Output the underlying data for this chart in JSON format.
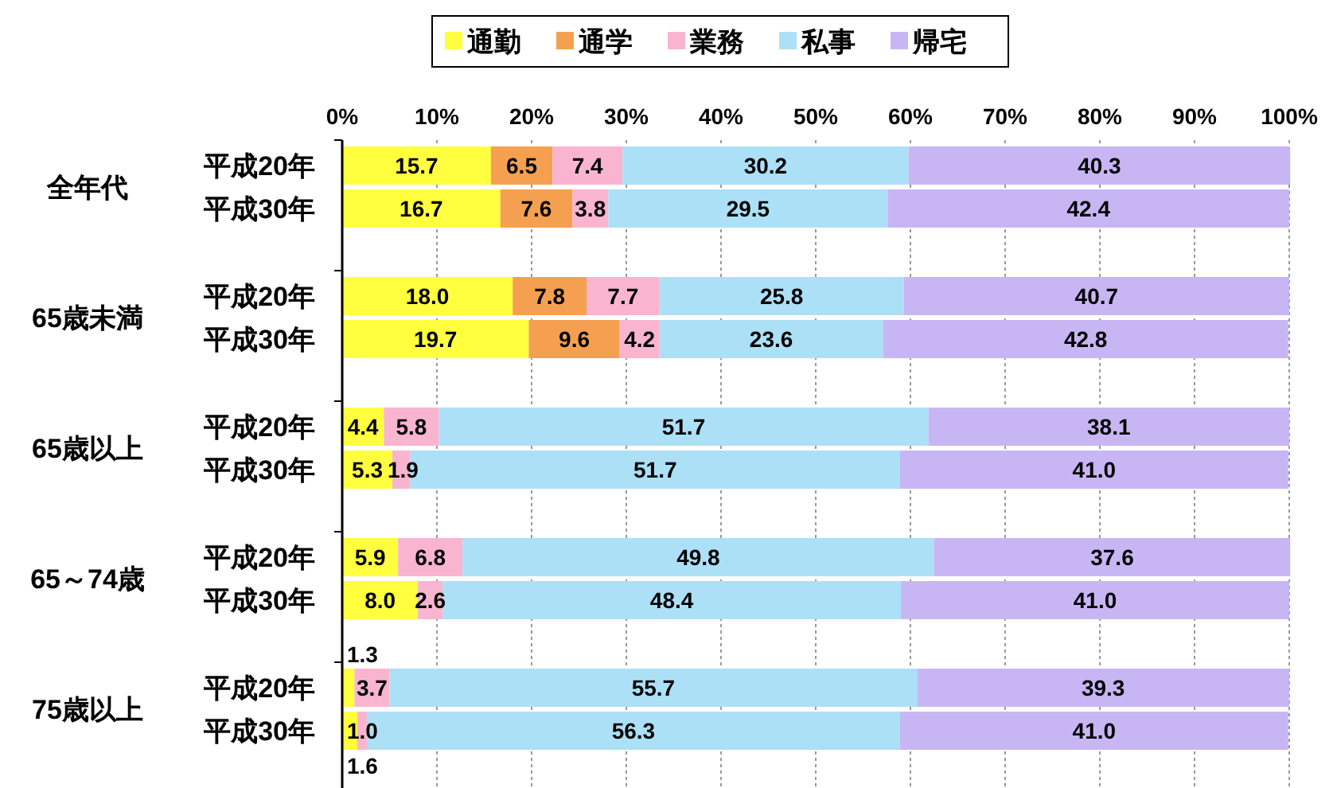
{
  "chart_data": {
    "type": "bar",
    "orientation": "horizontal",
    "stacked": true,
    "grid": "x",
    "legend": "top",
    "categories": [
      "平成20年",
      "平成30年",
      "平成20年",
      "平成30年",
      "平成20年",
      "平成30年",
      "平成20年",
      "平成30年",
      "平成20年",
      "平成30年"
    ],
    "annotations": [
      "全年代",
      "65歳未満",
      "65歳以上",
      "65～74歳",
      "75歳以上"
    ],
    "xlim": [
      0,
      100
    ],
    "xticks": [
      {
        "value": 0,
        "label": "0%"
      },
      {
        "value": 10,
        "label": "10%"
      },
      {
        "value": 20,
        "label": "20%"
      },
      {
        "value": 30,
        "label": "30%"
      },
      {
        "value": 40,
        "label": "40%"
      },
      {
        "value": 50,
        "label": "50%"
      },
      {
        "value": 60,
        "label": "60%"
      },
      {
        "value": 70,
        "label": "70%"
      },
      {
        "value": 80,
        "label": "80%"
      },
      {
        "value": 90,
        "label": "90%"
      },
      {
        "value": 100,
        "label": "100%"
      }
    ],
    "series": [
      {
        "name": "通勤",
        "color": "#ffff40",
        "values": [
          15.7,
          16.7,
          18.0,
          19.7,
          4.4,
          5.3,
          5.9,
          8.0,
          1.3,
          1.6
        ],
        "value_labels": [
          "15.7",
          "16.7",
          "18.0",
          "19.7",
          "4.4",
          "5.3",
          "5.9",
          "8.0",
          "1.3",
          "1.6"
        ]
      },
      {
        "name": "通学",
        "color": "#f5a050",
        "values": [
          6.5,
          7.6,
          7.8,
          9.6,
          null,
          null,
          null,
          null,
          null,
          null
        ],
        "value_labels": [
          "6.5",
          "7.6",
          "7.8",
          "9.6",
          null,
          null,
          null,
          null,
          null,
          null
        ]
      },
      {
        "name": "業務",
        "color": "#f9b4d0",
        "values": [
          7.4,
          3.8,
          7.7,
          4.2,
          5.8,
          1.9,
          6.8,
          2.6,
          3.7,
          1.0
        ],
        "value_labels": [
          "7.4",
          "3.8",
          "7.7",
          "4.2",
          "5.8",
          "1.9",
          "6.8",
          "2.6",
          "3.7",
          "1.0"
        ]
      },
      {
        "name": "私事",
        "color": "#ace0f6",
        "values": [
          30.2,
          29.5,
          25.8,
          23.6,
          51.7,
          51.7,
          49.8,
          48.4,
          55.7,
          56.3
        ],
        "value_labels": [
          "30.2",
          "29.5",
          "25.8",
          "23.6",
          "51.7",
          "51.7",
          "49.8",
          "48.4",
          "55.7",
          "56.3"
        ]
      },
      {
        "name": "帰宅",
        "color": "#c8b6f4",
        "values": [
          40.3,
          42.4,
          40.7,
          42.8,
          38.1,
          41.0,
          37.6,
          41.0,
          39.3,
          41.0
        ],
        "value_labels": [
          "40.3",
          "42.4",
          "40.7",
          "42.8",
          "38.1",
          "41.0",
          "37.6",
          "41.0",
          "39.3",
          "41.0"
        ]
      }
    ]
  }
}
